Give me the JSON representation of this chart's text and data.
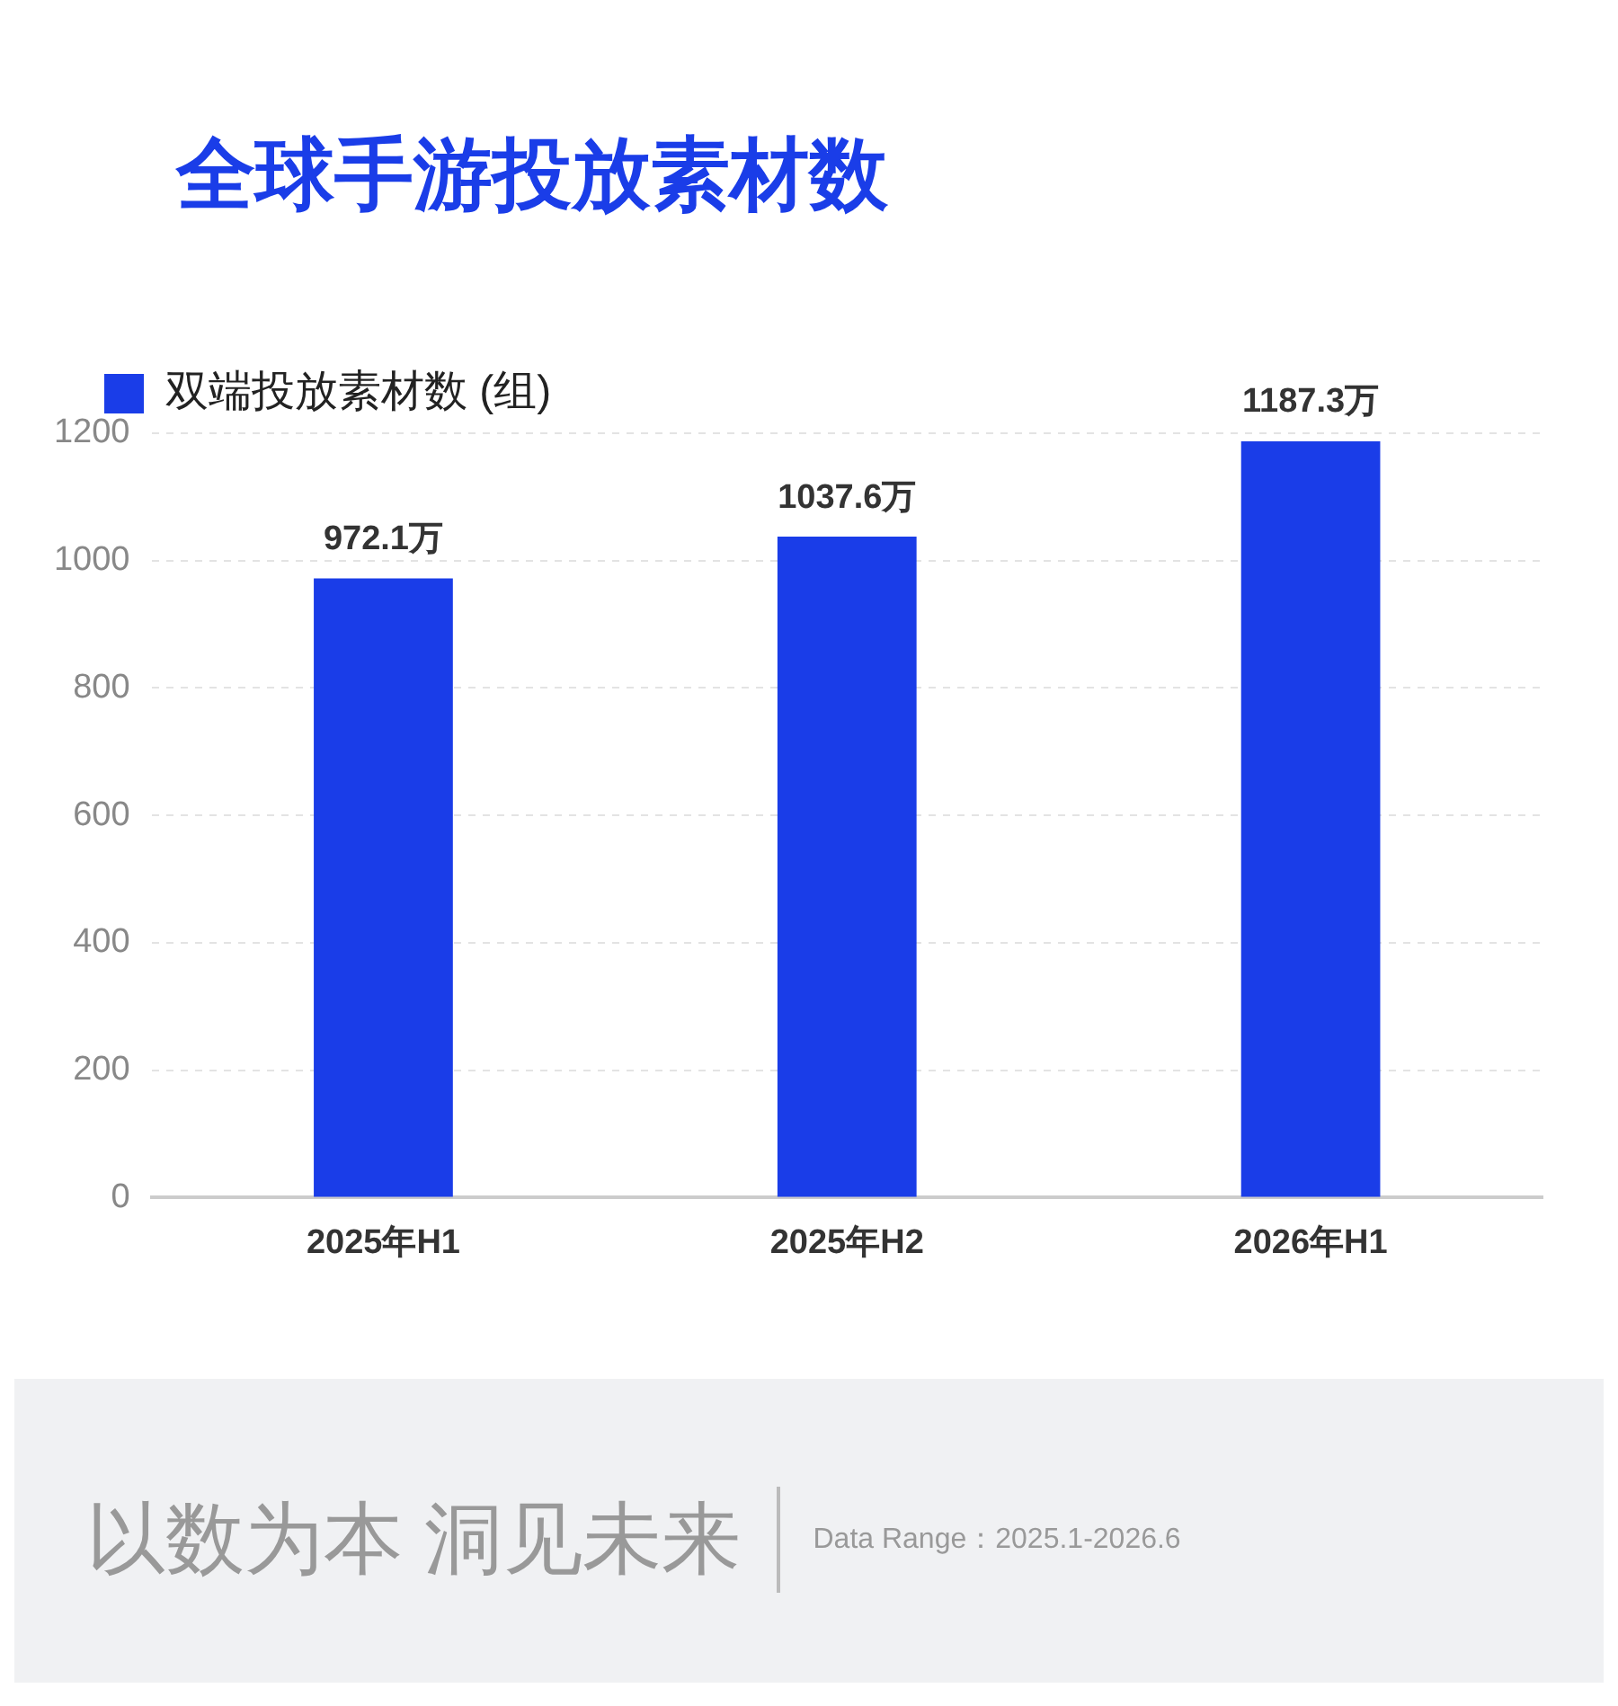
{
  "chart_data": {
    "type": "bar",
    "title": "全球手游投放素材数",
    "categories": [
      "2025年H1",
      "2025年H2",
      "2026年H1"
    ],
    "series": [
      {
        "name": "双端投放素材数 (组)",
        "color": "#1a3de8",
        "values": [
          972.1,
          1037.6,
          1187.3
        ],
        "value_labels": [
          "972.1万",
          "1037.6万",
          "1187.3万"
        ]
      }
    ],
    "ylim": [
      0,
      1200
    ],
    "yticks": [
      0,
      200,
      400,
      600,
      800,
      1000,
      1200
    ],
    "grid": "y",
    "legend": "top left",
    "annotations": [
      "以数为本 洞见未来",
      "Data Range：2025.1-2026.6"
    ]
  }
}
